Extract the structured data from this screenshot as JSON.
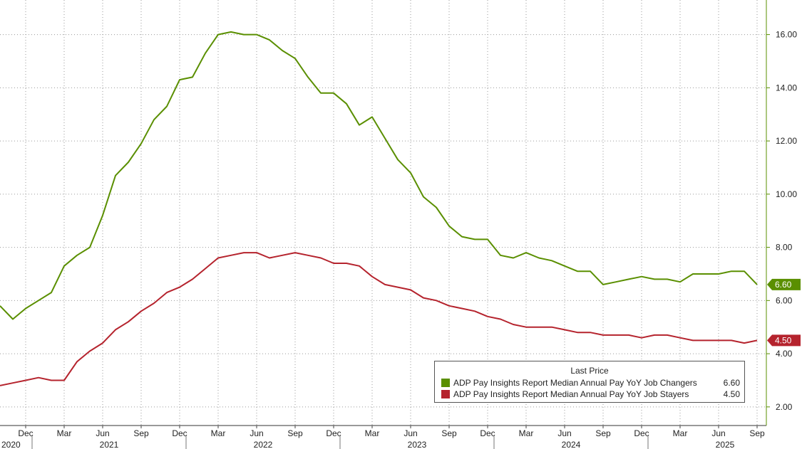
{
  "chart_data": {
    "type": "line",
    "x_start": "2020-10",
    "y_ticks": [
      "2.00",
      "4.00",
      "6.00",
      "8.00",
      "10.00",
      "12.00",
      "14.00",
      "16.00"
    ],
    "ylim": [
      1.3,
      17.3
    ],
    "x_month_ticks": [
      {
        "date": "2020-12",
        "label": "Dec"
      },
      {
        "date": "2021-03",
        "label": "Mar"
      },
      {
        "date": "2021-06",
        "label": "Jun"
      },
      {
        "date": "2021-09",
        "label": "Sep"
      },
      {
        "date": "2021-12",
        "label": "Dec"
      },
      {
        "date": "2022-03",
        "label": "Mar"
      },
      {
        "date": "2022-06",
        "label": "Jun"
      },
      {
        "date": "2022-09",
        "label": "Sep"
      },
      {
        "date": "2022-12",
        "label": "Dec"
      },
      {
        "date": "2023-03",
        "label": "Mar"
      },
      {
        "date": "2023-06",
        "label": "Jun"
      },
      {
        "date": "2023-09",
        "label": "Sep"
      },
      {
        "date": "2023-12",
        "label": "Dec"
      },
      {
        "date": "2024-03",
        "label": "Mar"
      },
      {
        "date": "2024-06",
        "label": "Jun"
      },
      {
        "date": "2024-09",
        "label": "Sep"
      },
      {
        "date": "2024-12",
        "label": "Dec"
      },
      {
        "date": "2025-03",
        "label": "Mar"
      },
      {
        "date": "2025-06",
        "label": "Jun"
      },
      {
        "date": "2025-09",
        "label": "Sep"
      }
    ],
    "x_year_labels": [
      {
        "date": "2020-10",
        "label": "2020"
      },
      {
        "date": "2021-07",
        "label": "2021"
      },
      {
        "date": "2022-07",
        "label": "2022"
      },
      {
        "date": "2023-07",
        "label": "2023"
      },
      {
        "date": "2024-07",
        "label": "2024"
      },
      {
        "date": "2025-07",
        "label": "2025"
      }
    ],
    "x_year_boundaries": [
      "2021-01",
      "2022-01",
      "2023-01",
      "2024-01",
      "2025-01"
    ],
    "grid": true,
    "legend_position": "bottom-right",
    "legend_title": "Last Price",
    "series": [
      {
        "name": "ADP Pay Insights Report Median Annual Pay YoY Job Changers",
        "last_value": "6.60",
        "color": "#5a8f00",
        "values": [
          5.8,
          5.3,
          5.7,
          6.0,
          6.3,
          7.3,
          7.7,
          8.0,
          9.2,
          10.7,
          11.2,
          11.9,
          12.8,
          13.3,
          14.3,
          14.4,
          15.3,
          16.0,
          16.1,
          16.0,
          16.0,
          15.8,
          15.4,
          15.1,
          14.4,
          13.8,
          13.8,
          13.4,
          12.6,
          12.9,
          12.1,
          11.3,
          10.8,
          9.9,
          9.5,
          8.8,
          8.4,
          8.3,
          8.3,
          7.7,
          7.6,
          7.8,
          7.6,
          7.5,
          7.3,
          7.1,
          7.1,
          6.6,
          6.7,
          6.8,
          6.9,
          6.8,
          6.8,
          6.7,
          7.0,
          7.0,
          7.0,
          7.1,
          7.1,
          6.6
        ]
      },
      {
        "name": "ADP Pay Insights Report Median Annual Pay YoY Job Stayers",
        "last_value": "4.50",
        "color": "#b5232d",
        "values": [
          2.8,
          2.9,
          3.0,
          3.1,
          3.0,
          3.0,
          3.7,
          4.1,
          4.4,
          4.9,
          5.2,
          5.6,
          5.9,
          6.3,
          6.5,
          6.8,
          7.2,
          7.6,
          7.7,
          7.8,
          7.8,
          7.6,
          7.7,
          7.8,
          7.7,
          7.6,
          7.4,
          7.4,
          7.3,
          6.9,
          6.6,
          6.5,
          6.4,
          6.1,
          6.0,
          5.8,
          5.7,
          5.6,
          5.4,
          5.3,
          5.1,
          5.0,
          5.0,
          5.0,
          4.9,
          4.8,
          4.8,
          4.7,
          4.7,
          4.7,
          4.6,
          4.7,
          4.7,
          4.6,
          4.5,
          4.5,
          4.5,
          4.5,
          4.4,
          4.5
        ]
      }
    ]
  }
}
